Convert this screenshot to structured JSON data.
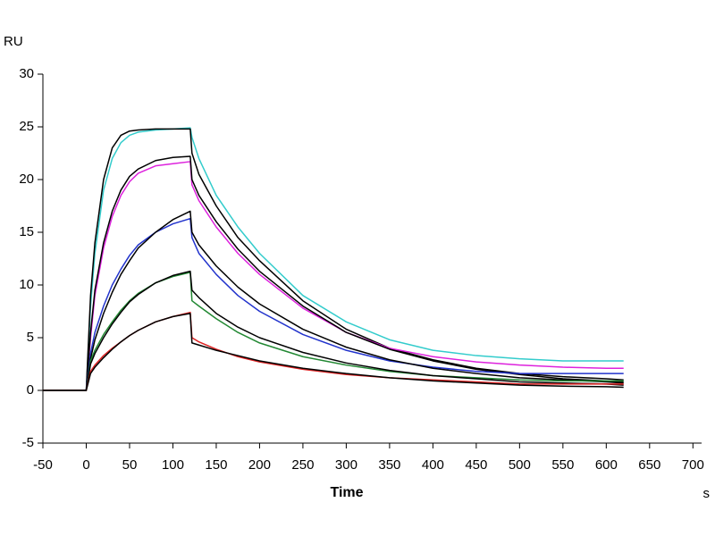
{
  "chart_data": {
    "type": "line",
    "y_label": "RU",
    "x_label": "Time",
    "x_unit": "s",
    "x": [
      -50,
      -25,
      0,
      5,
      10,
      20,
      30,
      40,
      50,
      60,
      80,
      100,
      120,
      122,
      130,
      150,
      175,
      200,
      250,
      300,
      350,
      400,
      450,
      500,
      550,
      600,
      620
    ],
    "series": [
      {
        "color": "#33cccc",
        "values": [
          0,
          0,
          0,
          8,
          13,
          19,
          22,
          23.5,
          24.2,
          24.5,
          24.7,
          24.8,
          24.9,
          24,
          22,
          18.5,
          15.5,
          13,
          9,
          6.5,
          4.8,
          3.8,
          3.3,
          3,
          2.8,
          2.8,
          2.8
        ]
      },
      {
        "color": "#000000",
        "values": [
          0,
          0,
          0,
          9,
          14,
          20,
          23,
          24.2,
          24.6,
          24.7,
          24.8,
          24.8,
          24.8,
          22.5,
          20.5,
          17.5,
          14.5,
          12.3,
          8.5,
          5.8,
          4,
          2.9,
          2.1,
          1.6,
          1.3,
          1.1,
          1
        ]
      },
      {
        "color": "#dd22dd",
        "values": [
          0,
          0,
          0,
          5,
          9,
          13.5,
          16.5,
          18.5,
          19.8,
          20.6,
          21.3,
          21.5,
          21.7,
          19.5,
          18,
          15.5,
          13,
          11,
          7.8,
          5.5,
          4,
          3.2,
          2.7,
          2.4,
          2.2,
          2.1,
          2.1
        ]
      },
      {
        "color": "#000000",
        "values": [
          0,
          0,
          0,
          5.5,
          9.5,
          14,
          17,
          19,
          20.3,
          21,
          21.8,
          22.1,
          22.2,
          20,
          18.5,
          16,
          13.4,
          11.3,
          8,
          5.5,
          3.9,
          2.8,
          2,
          1.5,
          1.1,
          0.9,
          0.8
        ]
      },
      {
        "color": "#2233cc",
        "values": [
          0,
          0,
          0,
          3.5,
          5.5,
          8,
          10,
          11.5,
          12.8,
          13.8,
          15,
          15.8,
          16.3,
          14.5,
          13,
          11,
          9,
          7.5,
          5.3,
          3.8,
          2.8,
          2.2,
          1.8,
          1.6,
          1.6,
          1.6,
          1.6
        ]
      },
      {
        "color": "#000000",
        "values": [
          0,
          0,
          0,
          3,
          4.8,
          7.3,
          9.3,
          11,
          12.3,
          13.5,
          15,
          16.2,
          17,
          15,
          13.8,
          11.8,
          9.8,
          8.2,
          5.8,
          4.1,
          2.9,
          2.1,
          1.6,
          1.2,
          1,
          0.8,
          0.7
        ]
      },
      {
        "color": "#228833",
        "values": [
          0,
          0,
          0,
          2.8,
          3.8,
          5.3,
          6.5,
          7.6,
          8.5,
          9.2,
          10.2,
          10.8,
          11.2,
          8.5,
          8,
          6.8,
          5.5,
          4.5,
          3.2,
          2.4,
          1.8,
          1.4,
          1.2,
          1,
          0.9,
          0.9,
          0.9
        ]
      },
      {
        "color": "#000000",
        "values": [
          0,
          0,
          0,
          2.5,
          3.5,
          5,
          6.3,
          7.4,
          8.4,
          9.1,
          10.2,
          10.9,
          11.3,
          9.5,
          8.8,
          7.3,
          6,
          5,
          3.6,
          2.6,
          1.9,
          1.4,
          1.1,
          0.8,
          0.7,
          0.6,
          0.5
        ]
      },
      {
        "color": "#dd2222",
        "values": [
          0,
          0,
          0,
          1.8,
          2.4,
          3.3,
          4,
          4.6,
          5.2,
          5.7,
          6.5,
          7,
          7.4,
          5,
          4.6,
          3.9,
          3.2,
          2.7,
          2,
          1.5,
          1.2,
          1,
          0.8,
          0.6,
          0.6,
          0.6,
          0.6
        ]
      },
      {
        "color": "#000000",
        "values": [
          0,
          0,
          0,
          1.6,
          2.2,
          3.1,
          3.9,
          4.6,
          5.2,
          5.7,
          6.5,
          7,
          7.3,
          4.5,
          4.3,
          3.8,
          3.3,
          2.8,
          2.1,
          1.6,
          1.2,
          0.9,
          0.7,
          0.5,
          0.4,
          0.35,
          0.3
        ]
      }
    ],
    "xlim": [
      -50,
      710
    ],
    "ylim": [
      -5,
      30
    ],
    "xticks": [
      -50,
      0,
      50,
      100,
      150,
      200,
      250,
      300,
      350,
      400,
      450,
      500,
      550,
      600,
      650,
      700
    ],
    "yticks": [
      -5,
      0,
      5,
      10,
      15,
      20,
      25,
      30
    ]
  }
}
